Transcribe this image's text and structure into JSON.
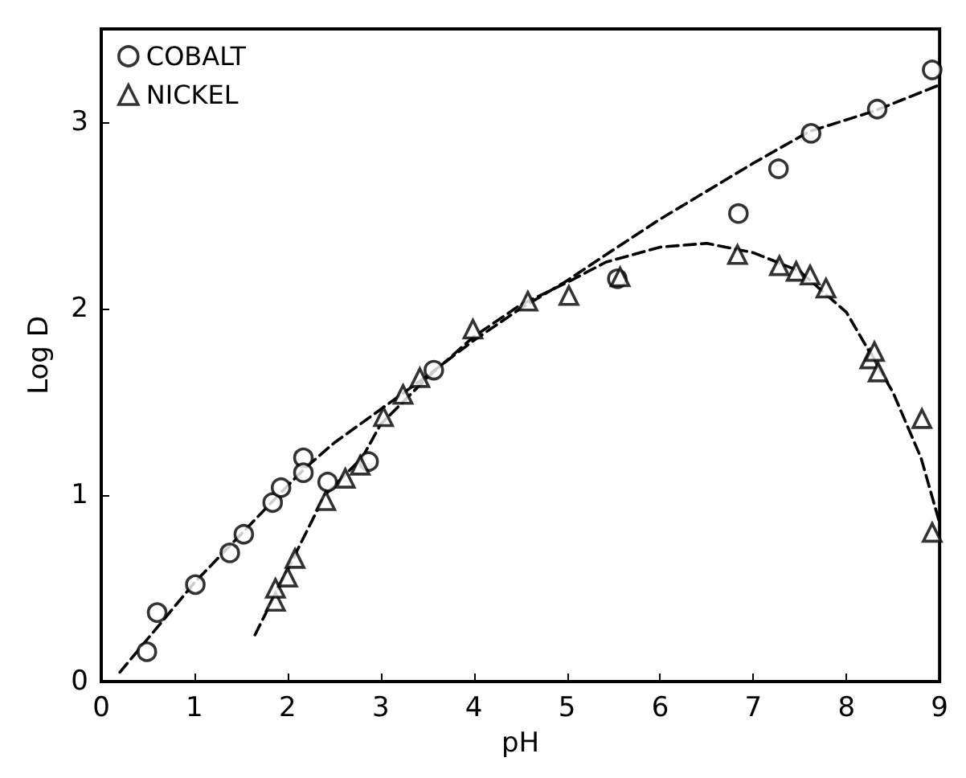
{
  "chart_data": {
    "type": "scatter",
    "xlabel": "pH",
    "ylabel": "Log D",
    "xlim": [
      0,
      9
    ],
    "xticks": [
      0,
      1,
      2,
      3,
      4,
      5,
      6,
      7,
      8,
      9
    ],
    "ylim": [
      0,
      3.5
    ],
    "yticks": [
      0,
      1,
      2,
      3
    ],
    "grid": false,
    "legend": "top left",
    "series": [
      {
        "name": "COBALT",
        "color": "#000000",
        "marker": "circle",
        "x": [
          0.49,
          0.6,
          1.01,
          1.38,
          1.53,
          1.84,
          1.93,
          2.17,
          2.17,
          2.43,
          2.87,
          3.57,
          5.54,
          6.84,
          7.27,
          7.62,
          8.33,
          8.92
        ],
        "values": [
          0.16,
          0.37,
          0.52,
          0.69,
          0.79,
          0.96,
          1.04,
          1.2,
          1.12,
          1.07,
          1.18,
          1.67,
          2.16,
          2.51,
          2.75,
          2.94,
          3.07,
          3.28
        ]
      },
      {
        "name": "NICKEL",
        "color": "#000000",
        "marker": "triangle",
        "x": [
          1.87,
          1.87,
          2.0,
          2.08,
          2.41,
          2.62,
          2.78,
          3.03,
          3.24,
          3.42,
          3.99,
          4.58,
          5.02,
          5.57,
          6.83,
          7.28,
          7.46,
          7.61,
          7.78,
          8.25,
          8.3,
          8.34,
          8.81,
          8.92
        ],
        "values": [
          0.43,
          0.5,
          0.56,
          0.66,
          0.97,
          1.09,
          1.16,
          1.42,
          1.54,
          1.63,
          1.89,
          2.04,
          2.07,
          2.17,
          2.29,
          2.23,
          2.2,
          2.18,
          2.11,
          1.73,
          1.77,
          1.66,
          1.41,
          0.8
        ]
      },
      {
        "type": "line",
        "color": "#000000",
        "marker": "none",
        "line_style": "dashed",
        "x": [
          0.2,
          1,
          2,
          2.2,
          2.5,
          3,
          3.5,
          4,
          4.5,
          5,
          5.42,
          6,
          7,
          7.6,
          8.3,
          9
        ],
        "values": [
          0.05,
          0.53,
          1.05,
          1.15,
          1.28,
          1.46,
          1.64,
          1.83,
          2.0,
          2.15,
          2.29,
          2.48,
          2.78,
          2.95,
          3.06,
          3.2
        ]
      },
      {
        "type": "line",
        "color": "#000000",
        "marker": "none",
        "line_style": "dashed",
        "x": [
          1.65,
          2,
          2.4,
          2.8,
          3,
          3.5,
          4,
          4.5,
          5,
          5.42,
          6,
          6.5,
          7,
          7.5,
          8,
          8.5,
          8.8,
          9
        ],
        "values": [
          0.25,
          0.6,
          1.0,
          1.2,
          1.38,
          1.63,
          1.85,
          2.02,
          2.14,
          2.25,
          2.33,
          2.35,
          2.3,
          2.2,
          1.98,
          1.55,
          1.2,
          0.85
        ]
      }
    ]
  }
}
